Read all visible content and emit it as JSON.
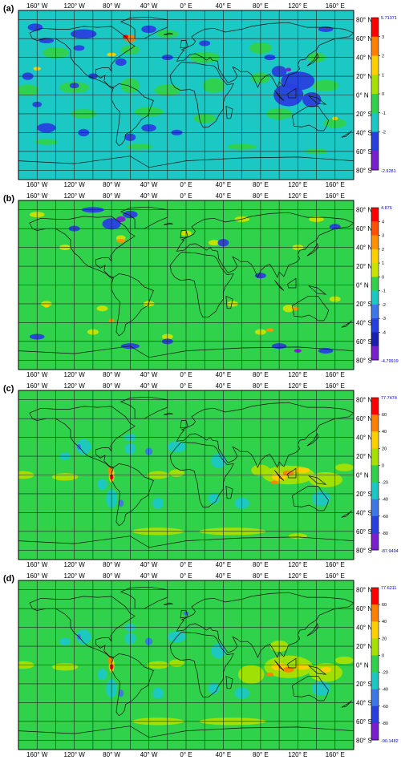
{
  "panels": [
    {
      "id": "a",
      "label": "(a)",
      "colorbar": {
        "max_label": "5.71371",
        "min_label": "-2.9281",
        "ticks": [
          "3",
          "2",
          "1",
          "0",
          "-1",
          "-2"
        ],
        "colors": [
          "#ff0000",
          "#ff8000",
          "#ffd000",
          "#a8e000",
          "#2fd24a",
          "#1cc8c4",
          "#2840e0",
          "#7a1fd0"
        ]
      }
    },
    {
      "id": "b",
      "label": "(b)",
      "colorbar": {
        "max_label": "4.876",
        "min_label": "-4.79919",
        "ticks": [
          "4",
          "3",
          "2",
          "1",
          "0",
          "-1",
          "-2",
          "-3",
          "-4"
        ],
        "colors": [
          "#ff0000",
          "#ff5000",
          "#ff9000",
          "#ffd000",
          "#c8e400",
          "#2fd24a",
          "#1cc8c4",
          "#3c78e8",
          "#2840e0",
          "#1a20b0",
          "#7a1fd0"
        ]
      }
    },
    {
      "id": "c",
      "label": "(c)",
      "colorbar": {
        "max_label": "77.7474",
        "min_label": "-87.9494",
        "ticks": [
          "60",
          "40",
          "20",
          "0",
          "-20",
          "-40",
          "-60",
          "-80"
        ],
        "colors": [
          "#ff0000",
          "#ff8000",
          "#ffd000",
          "#a8e000",
          "#2fd24a",
          "#1cc8c4",
          "#3c78e8",
          "#2840e0",
          "#7a1fd0"
        ]
      }
    },
    {
      "id": "d",
      "label": "(d)",
      "colorbar": {
        "max_label": "77.6211",
        "min_label": "-90.1482",
        "ticks": [
          "60",
          "40",
          "20",
          "0",
          "-20",
          "-40",
          "-60",
          "-80"
        ],
        "colors": [
          "#ff0000",
          "#ff8000",
          "#ffd000",
          "#a8e000",
          "#2fd24a",
          "#1cc8c4",
          "#3c78e8",
          "#2840e0",
          "#7a1fd0"
        ]
      }
    }
  ],
  "axes": {
    "lon_labels": [
      "160° W",
      "120° W",
      "80° W",
      "40° W",
      "0° E",
      "40° E",
      "80° E",
      "120° E",
      "160° E"
    ],
    "lat_labels": [
      "80° N",
      "60° N",
      "40° N",
      "20° N",
      "0° N",
      "20° S",
      "40° S",
      "60° S",
      "80° S"
    ]
  },
  "colors": {
    "frame": "#000000",
    "grid": "#222222",
    "coast": "#111111",
    "neg_label": "#0000cc",
    "pos_label": "#0000cc"
  }
}
